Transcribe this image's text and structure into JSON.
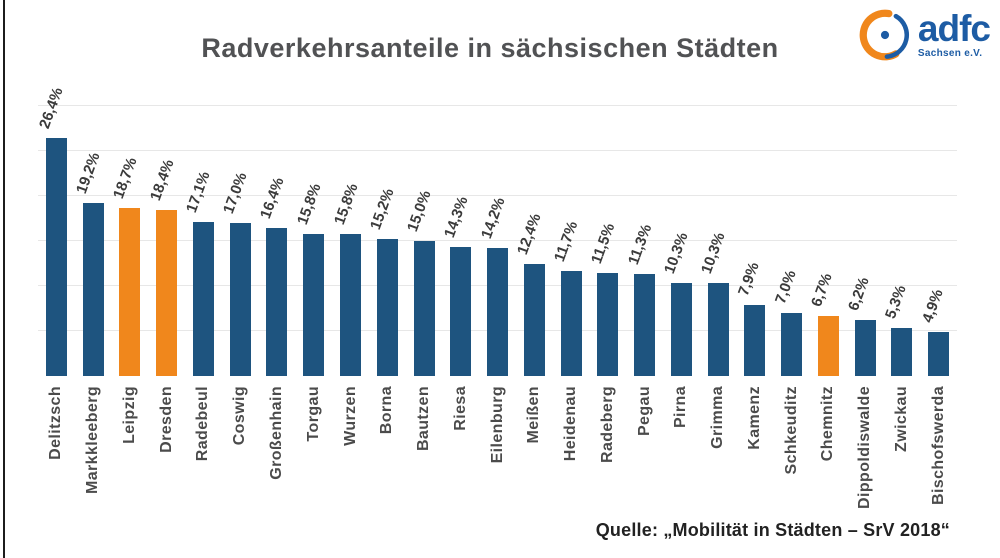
{
  "title": "Radverkehrsanteile in sächsischen Städten",
  "logo": {
    "brand": "adfc",
    "subtitle": "Sachsen e.V.",
    "icon": "adfc-circle-dot-logo",
    "brand_color": "#1d5ca4",
    "accent_color": "#f0871c"
  },
  "source": "Quelle: „Mobilität in Städten – SrV 2018“",
  "chart_data": {
    "type": "bar",
    "title": "Radverkehrsanteile in sächsischen Städten",
    "xlabel": "",
    "ylabel": "",
    "ylim": [
      0,
      30
    ],
    "grid": true,
    "gridline_step": 5,
    "legend": "none",
    "bar_color": "#1e547f",
    "highlight_color": "#f0871c",
    "highlighted_indices": [
      2,
      3,
      21
    ],
    "categories": [
      "Delitzsch",
      "Markkleeberg",
      "Leipzig",
      "Dresden",
      "Radebeul",
      "Coswig",
      "Großenhain",
      "Torgau",
      "Wurzen",
      "Borna",
      "Bautzen",
      "Riesa",
      "Eilenburg",
      "Meißen",
      "Heidenau",
      "Radeberg",
      "Pegau",
      "Pirna",
      "Grimma",
      "Kamenz",
      "Schkeuditz",
      "Chemnitz",
      "Dippoldiswalde",
      "Zwickau",
      "Bischofswerda"
    ],
    "values": [
      26.4,
      19.2,
      18.7,
      18.4,
      17.1,
      17.0,
      16.4,
      15.8,
      15.8,
      15.2,
      15.0,
      14.3,
      14.2,
      12.4,
      11.7,
      11.5,
      11.3,
      10.3,
      10.3,
      7.9,
      7.0,
      6.7,
      6.2,
      5.3,
      4.9
    ],
    "value_labels": [
      "26,4%",
      "19,2%",
      "18,7%",
      "18,4%",
      "17,1%",
      "17,0%",
      "16,4%",
      "15,8%",
      "15,8%",
      "15,2%",
      "15,0%",
      "14,3%",
      "14,2%",
      "12,4%",
      "11,7%",
      "11,5%",
      "11,3%",
      "10,3%",
      "10,3%",
      "7,9%",
      "7,0%",
      "6,7%",
      "6,2%",
      "5,3%",
      "4,9%"
    ]
  }
}
